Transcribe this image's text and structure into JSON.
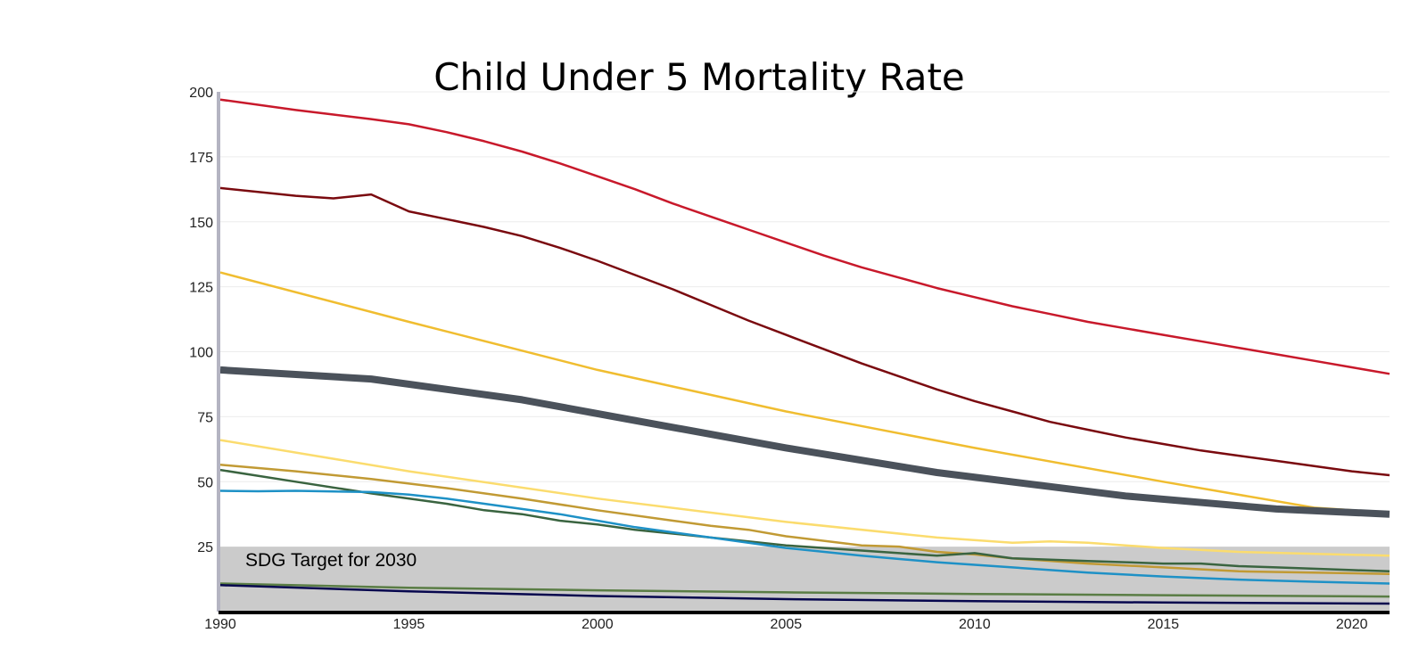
{
  "chart_data": {
    "type": "line",
    "title": "Child Under 5 Mortality Rate",
    "xlabel": "",
    "ylabel": "",
    "xlim": [
      1990,
      2021
    ],
    "ylim": [
      0,
      200
    ],
    "y_ticks": [
      25,
      50,
      75,
      100,
      125,
      150,
      175,
      200
    ],
    "x_ticks": [
      1990,
      1995,
      2000,
      2005,
      2010,
      2015,
      2020
    ],
    "grid": true,
    "legend": "none",
    "target_band": {
      "label": "SDG Target for 2030",
      "y_min": 0,
      "y_max": 25,
      "color": "#cbcbcb"
    },
    "series": [
      {
        "color": "#c8192b",
        "width": 2.5,
        "x": [
          1990,
          1992,
          1994,
          1995,
          1996,
          1997,
          1998,
          1999,
          2000,
          2001,
          2002,
          2003,
          2004,
          2005,
          2006,
          2007,
          2008,
          2009,
          2010,
          2011,
          2012,
          2013,
          2014,
          2015,
          2016,
          2017,
          2018,
          2019,
          2020,
          2021
        ],
        "y": [
          197,
          193,
          189.5,
          187.5,
          184.5,
          181,
          177,
          172.5,
          167.5,
          162.5,
          157,
          152,
          147,
          142,
          137,
          132.5,
          128.5,
          124.5,
          121,
          117.5,
          114.5,
          111.5,
          109,
          106.5,
          104,
          101.5,
          99,
          96.5,
          94,
          91.5
        ]
      },
      {
        "color": "#7a0a0f",
        "width": 2.5,
        "x": [
          1990,
          1992,
          1993,
          1994,
          1995,
          1996,
          1997,
          1998,
          1999,
          2000,
          2001,
          2002,
          2003,
          2004,
          2005,
          2006,
          2007,
          2008,
          2009,
          2010,
          2011,
          2012,
          2013,
          2014,
          2015,
          2016,
          2017,
          2018,
          2019,
          2020,
          2021
        ],
        "y": [
          163,
          160,
          159,
          160.5,
          154,
          151,
          148,
          144.5,
          140,
          135,
          129.5,
          124,
          118,
          112,
          106.5,
          101,
          95.5,
          90.5,
          85.5,
          81,
          77,
          73,
          70,
          67,
          64.5,
          62,
          60,
          58,
          56,
          54,
          52.5
        ]
      },
      {
        "color": "#f0bd30",
        "width": 2.5,
        "x": [
          1990,
          1995,
          2000,
          2005,
          2010,
          2015,
          2019,
          2021
        ],
        "y": [
          130.5,
          111.5,
          93,
          77,
          63,
          50,
          40,
          38
        ]
      },
      {
        "color": "#4b525b",
        "width": 8,
        "x": [
          1990,
          1994,
          1998,
          2001,
          2005,
          2009,
          2014,
          2018,
          2021
        ],
        "y": [
          93,
          89.5,
          81.5,
          73.5,
          63,
          53.5,
          44.5,
          39.5,
          37.5
        ]
      },
      {
        "color": "#fbdc6e",
        "width": 2.5,
        "x": [
          1990,
          1995,
          2000,
          2005,
          2009,
          2011,
          2012,
          2013,
          2015,
          2017,
          2021
        ],
        "y": [
          66,
          54,
          43.5,
          34.5,
          28.5,
          26.5,
          27,
          26.5,
          24.5,
          23,
          21.5
        ]
      },
      {
        "color": "#c19a34",
        "width": 2.5,
        "x": [
          1990,
          1992,
          1994,
          1996,
          1998,
          2000,
          2002,
          2003,
          2004,
          2005,
          2007,
          2008,
          2009,
          2010,
          2011,
          2013,
          2015,
          2017,
          2021
        ],
        "y": [
          56.5,
          54,
          51,
          47.5,
          43.5,
          39,
          35,
          33,
          31.5,
          29,
          25.5,
          25,
          23,
          22,
          20.5,
          18.5,
          17,
          15.5,
          14.5
        ]
      },
      {
        "color": "#3a6440",
        "width": 2.5,
        "x": [
          1990,
          1992,
          1994,
          1996,
          1997,
          1998,
          1999,
          2000,
          2001,
          2002,
          2003,
          2004,
          2005,
          2006,
          2007,
          2008,
          2009,
          2010,
          2011,
          2012,
          2013,
          2014,
          2015,
          2016,
          2017,
          2018,
          2019,
          2020,
          2021
        ],
        "y": [
          54.5,
          50,
          45.5,
          41.5,
          39,
          37.5,
          35,
          33.5,
          31.5,
          30,
          28.5,
          27,
          25.5,
          24.5,
          23.5,
          22.5,
          21.5,
          22.5,
          20.5,
          20,
          19.5,
          19,
          18.5,
          18.5,
          17.5,
          17,
          16.5,
          16,
          15.5
        ]
      },
      {
        "color": "#1e91c6",
        "width": 2.5,
        "x": [
          1990,
          1991,
          1992,
          1994,
          1995,
          1996,
          1997,
          1998,
          1999,
          2000,
          2001,
          2002,
          2003,
          2004,
          2005,
          2007,
          2009,
          2011,
          2013,
          2015,
          2017,
          2019,
          2021
        ],
        "y": [
          46.5,
          46.3,
          46.5,
          46,
          45,
          43.5,
          41.5,
          39.5,
          37.5,
          35,
          32.5,
          30.5,
          28.5,
          26.5,
          24.5,
          21.5,
          19,
          17,
          15,
          13.5,
          12.3,
          11.5,
          10.8
        ]
      },
      {
        "color": "#5a7d45",
        "width": 2.5,
        "x": [
          1990,
          1995,
          2000,
          2005,
          2010,
          2015,
          2021
        ],
        "y": [
          10.8,
          9.2,
          8.2,
          7.4,
          6.8,
          6.3,
          5.8
        ]
      },
      {
        "color": "#07074e",
        "width": 2.5,
        "x": [
          1990,
          1995,
          2000,
          2005,
          2010,
          2015,
          2021
        ],
        "y": [
          10.2,
          7.8,
          6.0,
          4.8,
          4.0,
          3.5,
          3.1
        ]
      }
    ]
  }
}
